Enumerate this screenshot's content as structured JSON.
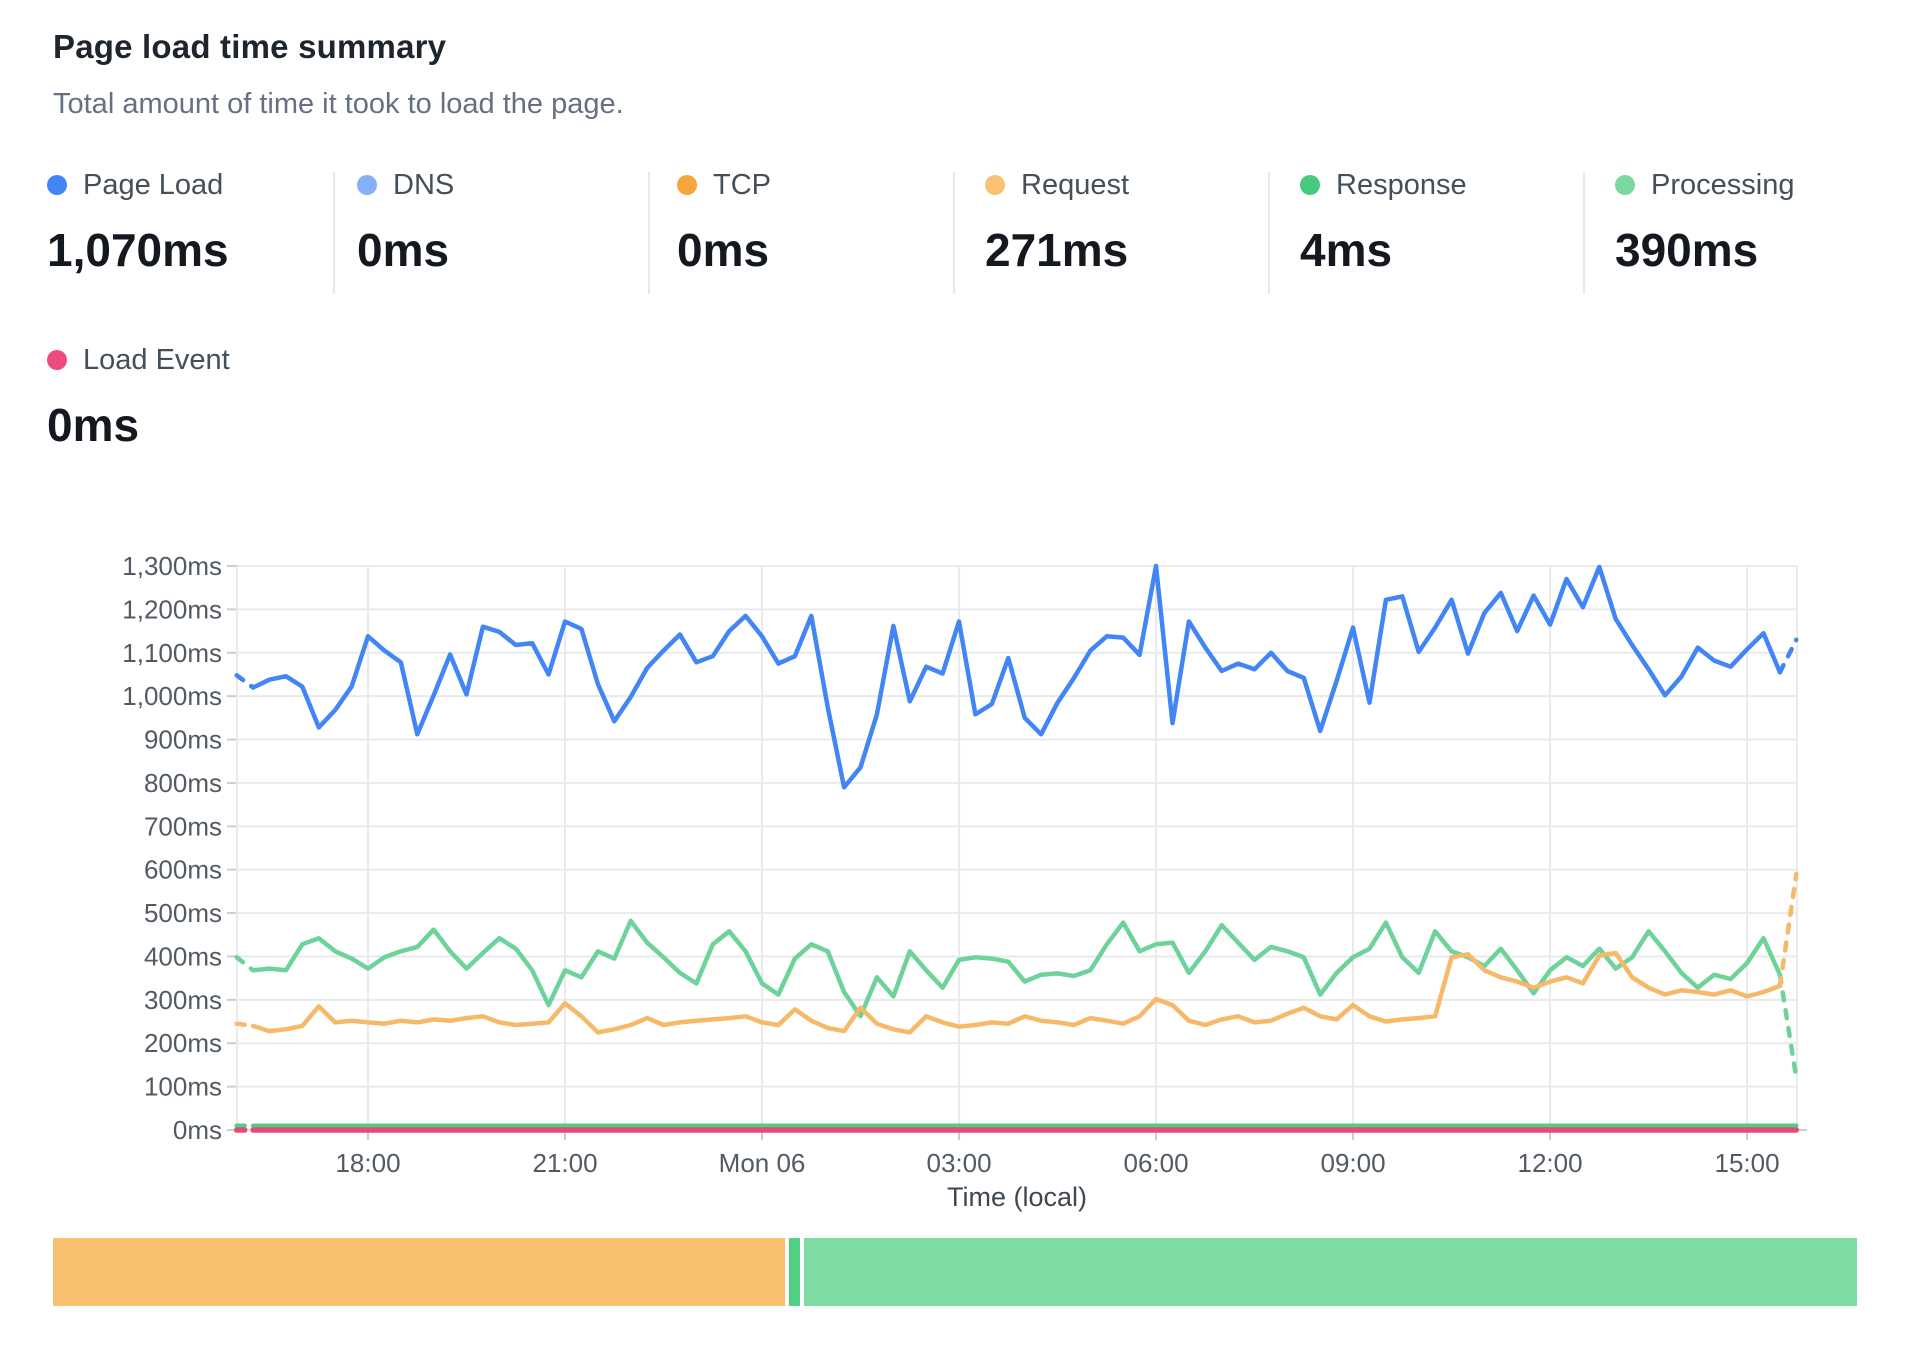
{
  "page": {
    "title": "Page load time summary",
    "subtitle": "Total amount of time it took to load the page."
  },
  "metrics": [
    {
      "id": "page_load",
      "label": "Page Load",
      "value": "1,070ms",
      "color": "#4285F4"
    },
    {
      "id": "dns",
      "label": "DNS",
      "value": "0ms",
      "color": "#85AFF6"
    },
    {
      "id": "tcp",
      "label": "TCP",
      "value": "0ms",
      "color": "#F6A53C"
    },
    {
      "id": "request",
      "label": "Request",
      "value": "271ms",
      "color": "#F8C173"
    },
    {
      "id": "response",
      "label": "Response",
      "value": "4ms",
      "color": "#47C97E"
    },
    {
      "id": "processing",
      "label": "Processing",
      "value": "390ms",
      "color": "#79D9A1"
    }
  ],
  "secondary_metric": {
    "id": "load_event",
    "label": "Load Event",
    "value": "0ms",
    "color": "#EE4A7E"
  },
  "chart_data": {
    "type": "line",
    "title": "Page load time summary",
    "xlabel": "Time (local)",
    "ylabel": "",
    "ylim": [
      0,
      1300
    ],
    "y_tick_step_ms": 100,
    "y_tick_labels": [
      "0ms",
      "100ms",
      "200ms",
      "300ms",
      "400ms",
      "500ms",
      "600ms",
      "700ms",
      "800ms",
      "900ms",
      "1,000ms",
      "1,100ms",
      "1,200ms",
      "1,300ms"
    ],
    "x_start": "Sun 16:00",
    "x_interval_minutes": 15,
    "x_ticks": [
      {
        "label": "18:00",
        "hour_offset": 2
      },
      {
        "label": "21:00",
        "hour_offset": 5
      },
      {
        "label": "Mon 06",
        "hour_offset": 8
      },
      {
        "label": "03:00",
        "hour_offset": 11
      },
      {
        "label": "06:00",
        "hour_offset": 14
      },
      {
        "label": "09:00",
        "hour_offset": 17
      },
      {
        "label": "12:00",
        "hour_offset": 20
      },
      {
        "label": "15:00",
        "hour_offset": 23
      }
    ],
    "grid": true,
    "legend_position": "top-outside",
    "note": "first and last segments of each series are rendered dashed (partial buckets)",
    "series": [
      {
        "name": "DNS",
        "color": "#85AFF6",
        "width": 3.5,
        "hidden": true,
        "constant": 0,
        "count": 96
      },
      {
        "name": "TCP",
        "color": "#F6A53C",
        "width": 3.5,
        "hidden": true,
        "constant": 0,
        "count": 96
      },
      {
        "name": "Processing",
        "color": "#6ED29B",
        "width": 4.5,
        "dash_first": true,
        "dash_last": true,
        "values": [
          398,
          368,
          372,
          368,
          428,
          442,
          412,
          395,
          372,
          398,
          412,
          422,
          462,
          412,
          372,
          408,
          442,
          418,
          368,
          288,
          368,
          352,
          412,
          395,
          482,
          432,
          398,
          362,
          338,
          428,
          458,
          412,
          338,
          312,
          395,
          428,
          412,
          318,
          262,
          352,
          308,
          412,
          368,
          328,
          392,
          398,
          395,
          388,
          342,
          358,
          361,
          355,
          368,
          428,
          478,
          412,
          428,
          432,
          362,
          412,
          472,
          432,
          392,
          422,
          412,
          398,
          312,
          362,
          398,
          418,
          478,
          398,
          362,
          458,
          412,
          398,
          378,
          418,
          368,
          315,
          368,
          398,
          378,
          418,
          372,
          398,
          458,
          412,
          362,
          328,
          358,
          348,
          385,
          442,
          358,
          120
        ]
      },
      {
        "name": "Request",
        "color": "#F5B969",
        "width": 4.5,
        "dash_first": true,
        "dash_last": true,
        "values": [
          245,
          240,
          228,
          232,
          240,
          285,
          248,
          252,
          248,
          245,
          252,
          248,
          255,
          252,
          258,
          262,
          248,
          242,
          245,
          248,
          292,
          262,
          225,
          232,
          242,
          258,
          242,
          248,
          252,
          255,
          258,
          262,
          248,
          242,
          278,
          252,
          235,
          228,
          282,
          245,
          232,
          225,
          262,
          248,
          238,
          242,
          248,
          245,
          262,
          252,
          248,
          242,
          258,
          252,
          245,
          262,
          302,
          288,
          252,
          242,
          255,
          262,
          248,
          252,
          268,
          282,
          262,
          255,
          288,
          262,
          250,
          255,
          258,
          262,
          398,
          405,
          368,
          352,
          342,
          328,
          342,
          352,
          338,
          402,
          408,
          352,
          328,
          312,
          322,
          318,
          312,
          322,
          308,
          318,
          332,
          590
        ]
      },
      {
        "name": "Response",
        "color": "#4FCE84",
        "width": 4.5,
        "dash_first": true,
        "dash_last": false,
        "constant": 4,
        "count": 96,
        "render_lift_ms": 6
      },
      {
        "name": "Load Event",
        "color": "#E8497B",
        "width": 5.5,
        "dash_first": true,
        "dash_last": false,
        "constant": 0,
        "count": 96
      },
      {
        "name": "Page Load",
        "color": "#4285F4",
        "width": 4.5,
        "dash_first": true,
        "dash_last": true,
        "values": [
          1048,
          1020,
          1038,
          1046,
          1022,
          928,
          968,
          1022,
          1138,
          1105,
          1078,
          912,
          1002,
          1096,
          1004,
          1160,
          1148,
          1118,
          1122,
          1050,
          1172,
          1155,
          1028,
          942,
          998,
          1065,
          1105,
          1142,
          1078,
          1092,
          1150,
          1185,
          1138,
          1075,
          1092,
          1185,
          975,
          790,
          836,
          958,
          1162,
          988,
          1068,
          1052,
          1172,
          958,
          982,
          1088,
          950,
          912,
          985,
          1042,
          1105,
          1138,
          1135,
          1095,
          1300,
          938,
          1172,
          1112,
          1058,
          1075,
          1062,
          1100,
          1058,
          1042,
          920,
          1035,
          1158,
          985,
          1222,
          1230,
          1102,
          1158,
          1222,
          1098,
          1192,
          1238,
          1150,
          1232,
          1165,
          1270,
          1205,
          1298,
          1178,
          1118,
          1062,
          1002,
          1045,
          1112,
          1082,
          1068,
          1108,
          1145,
          1055,
          1130
        ]
      }
    ]
  },
  "timeline_bar": {
    "total_ms": 665,
    "segments": [
      {
        "name": "Request",
        "ms": 271,
        "fraction": 0.4077,
        "color": "#F8C06E"
      },
      {
        "name": "Response",
        "ms": 4,
        "fraction": 0.006,
        "color": "#50CF85"
      },
      {
        "name": "Processing",
        "ms": 390,
        "fraction": 0.5863,
        "color": "#7CDCA3"
      }
    ]
  }
}
